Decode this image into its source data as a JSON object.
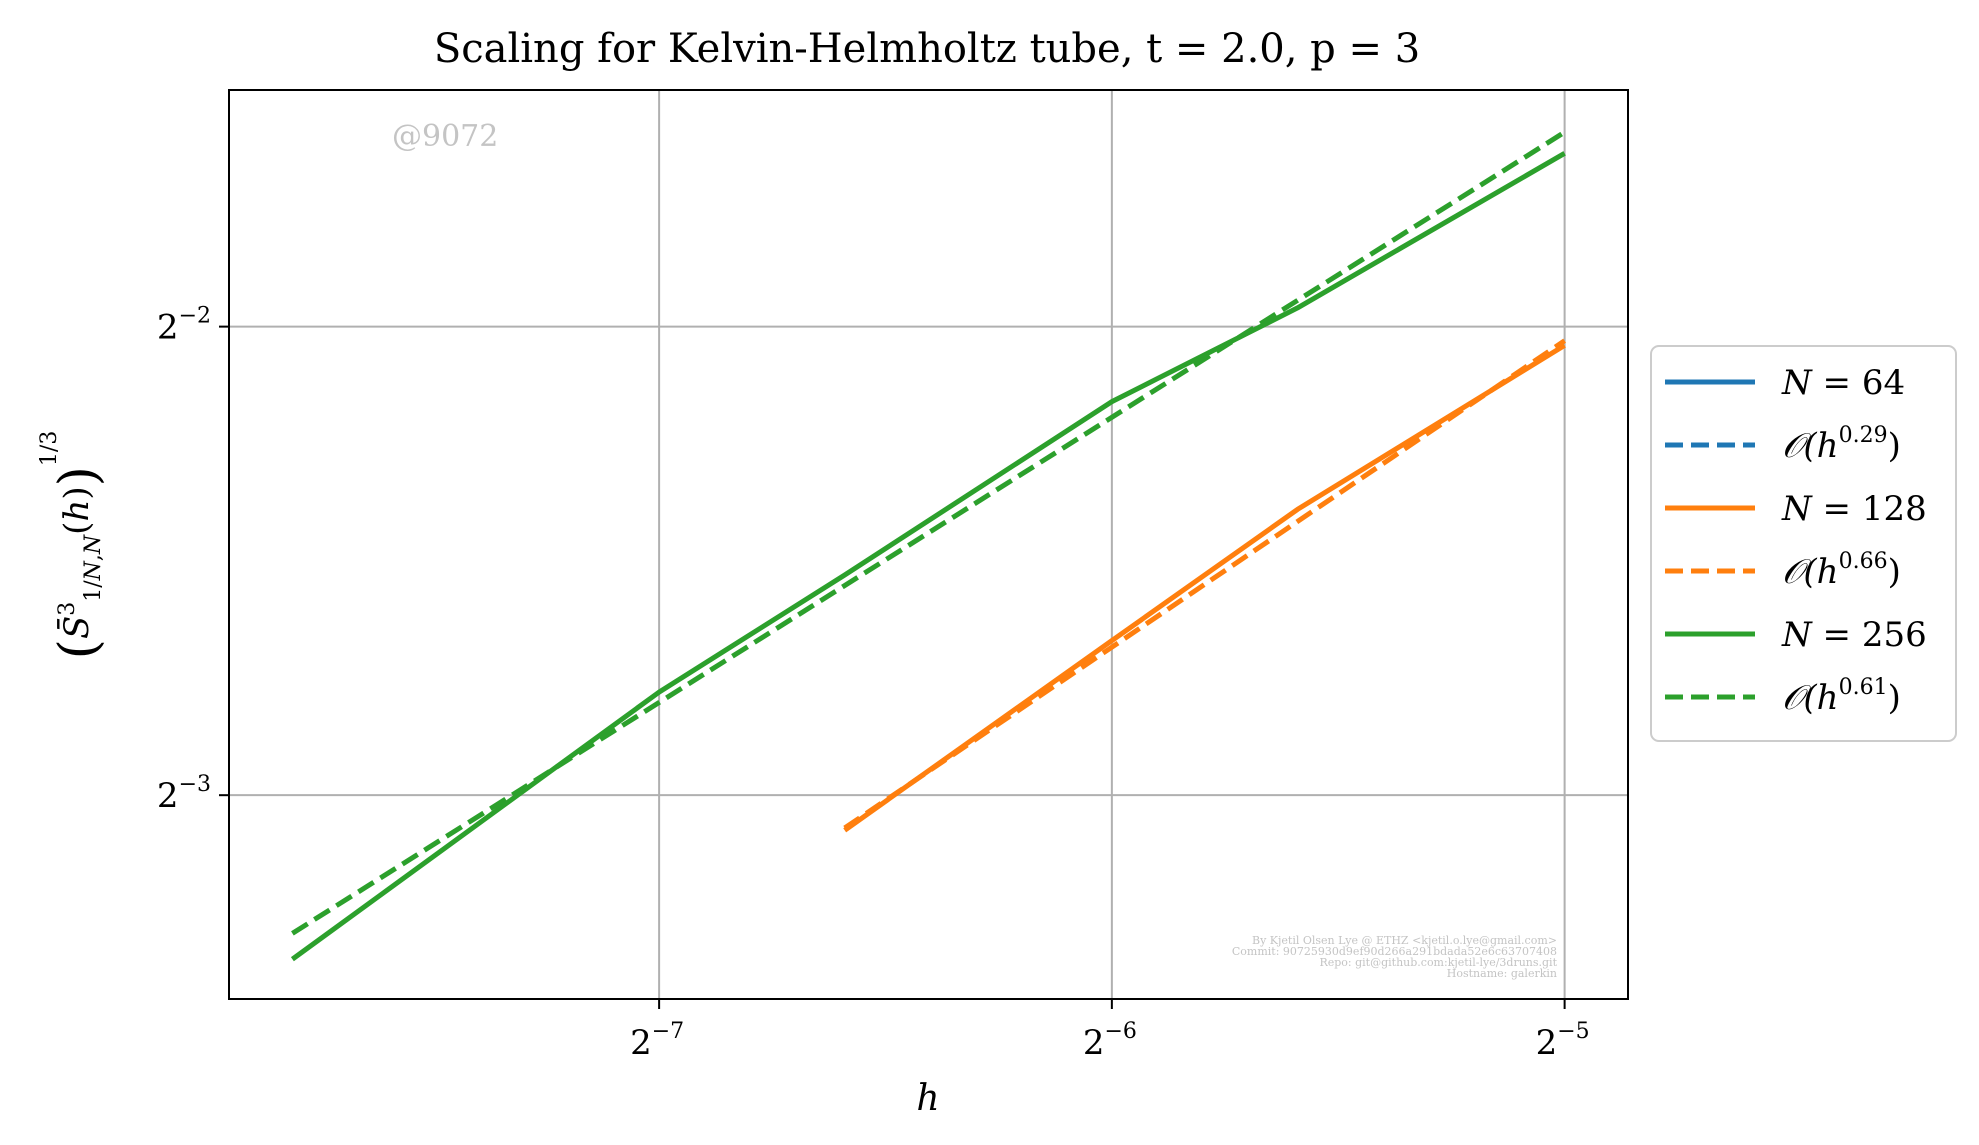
{
  "chart_data": {
    "type": "line",
    "title": "Scaling for Kelvin-Helmholtz tube, t = 2.0, p = 3",
    "xlabel": "h",
    "ylabel": "(S̄³₁/N,N(h))^(1/3)",
    "x_scale": "log2",
    "y_scale": "log2",
    "xlim_log2": [
      -7.95,
      -4.86
    ],
    "ylim_log2": [
      -3.435,
      -1.495
    ],
    "x_ticks": [
      {
        "base": "2",
        "exp": "−7",
        "value": -7
      },
      {
        "base": "2",
        "exp": "−6",
        "value": -6
      },
      {
        "base": "2",
        "exp": "−5",
        "value": -5
      }
    ],
    "y_ticks": [
      {
        "base": "2",
        "exp": "−2",
        "value": -2
      },
      {
        "base": "2",
        "exp": "−3",
        "value": -3
      }
    ],
    "grid": true,
    "legend_placement": "outside-right",
    "series": [
      {
        "name": "N = 64",
        "style": "solid",
        "color": "#1f77b4",
        "points": []
      },
      {
        "name": "𝒪(h^0.29)",
        "style": "dashed",
        "color": "#1f77b4",
        "points": []
      },
      {
        "name": "N = 128",
        "style": "solid",
        "color": "#ff7f0e",
        "points": [
          [
            -6.59,
            -3.075
          ],
          [
            -6.0,
            -2.67
          ],
          [
            -5.59,
            -2.39
          ],
          [
            -5.0,
            -2.04
          ]
        ]
      },
      {
        "name": "𝒪(h^0.66)",
        "style": "dashed",
        "color": "#ff7f0e",
        "points": [
          [
            -6.59,
            -3.07
          ],
          [
            -5.0,
            -2.03
          ]
        ]
      },
      {
        "name": "N = 256",
        "style": "solid",
        "color": "#2ca02c",
        "points": [
          [
            -7.81,
            -3.35
          ],
          [
            -7.0,
            -2.78
          ],
          [
            -6.59,
            -2.53
          ],
          [
            -6.0,
            -2.16
          ],
          [
            -5.59,
            -1.96
          ],
          [
            -5.0,
            -1.63
          ]
        ]
      },
      {
        "name": "𝒪(h^0.61)",
        "style": "dashed",
        "color": "#2ca02c",
        "points": [
          [
            -7.81,
            -3.295
          ],
          [
            -5.0,
            -1.585
          ]
        ]
      }
    ],
    "watermark": "@9072",
    "credits": [
      "By Kjetil Olsen Lye @ ETHZ <kjetil.o.lye@gmail.com>",
      "Commit: 90725930d9ef90d266a291bdada52e6c63707408",
      "Repo: git@github.com:kjetil-lye/3druns.git",
      "Hostname: galerkin"
    ]
  },
  "legend": [
    {
      "prefix": "N = ",
      "value": "64",
      "color": "#1f77b4",
      "style": "solid"
    },
    {
      "prefix": "𝒪(h",
      "value": "0.29",
      "color": "#1f77b4",
      "style": "dashed"
    },
    {
      "prefix": "N = ",
      "value": "128",
      "color": "#ff7f0e",
      "style": "solid"
    },
    {
      "prefix": "𝒪(h",
      "value": "0.66",
      "color": "#ff7f0e",
      "style": "dashed"
    },
    {
      "prefix": "N = ",
      "value": "256",
      "color": "#2ca02c",
      "style": "solid"
    },
    {
      "prefix": "𝒪(h",
      "value": "0.61",
      "color": "#2ca02c",
      "style": "dashed"
    }
  ]
}
